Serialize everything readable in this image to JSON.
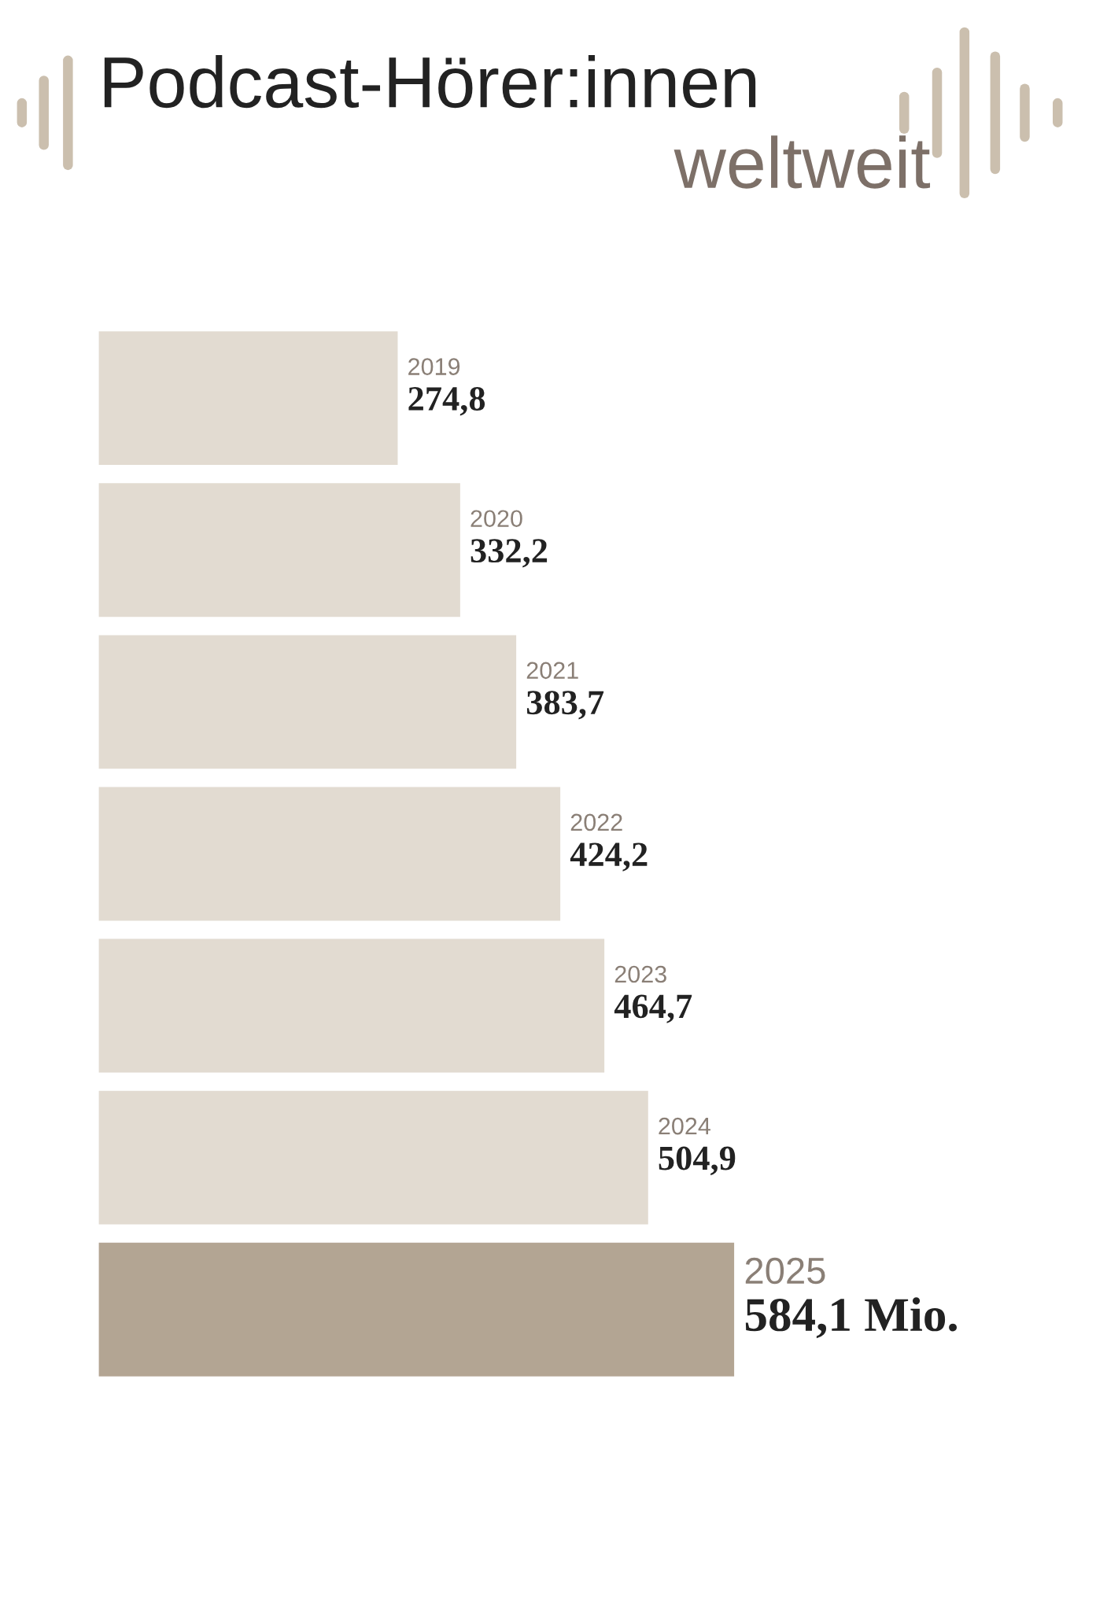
{
  "chart_data": {
    "type": "bar",
    "orientation": "horizontal",
    "title": "Podcast-Hörer:innen",
    "subtitle": "weltweit",
    "categories": [
      "2019",
      "2020",
      "2021",
      "2022",
      "2023",
      "2024",
      "2025"
    ],
    "values": [
      274.8,
      332.2,
      383.7,
      424.2,
      464.7,
      504.9,
      584.1
    ],
    "value_labels": [
      "274,8",
      "332,2",
      "383,7",
      "424,2",
      "464,7",
      "504,9",
      "584,1 Mio."
    ],
    "colors": [
      "#e2dbd1",
      "#e2dbd1",
      "#e2dbd1",
      "#e2dbd1",
      "#e2dbd1",
      "#e2dbd1",
      "#b3a593"
    ]
  }
}
